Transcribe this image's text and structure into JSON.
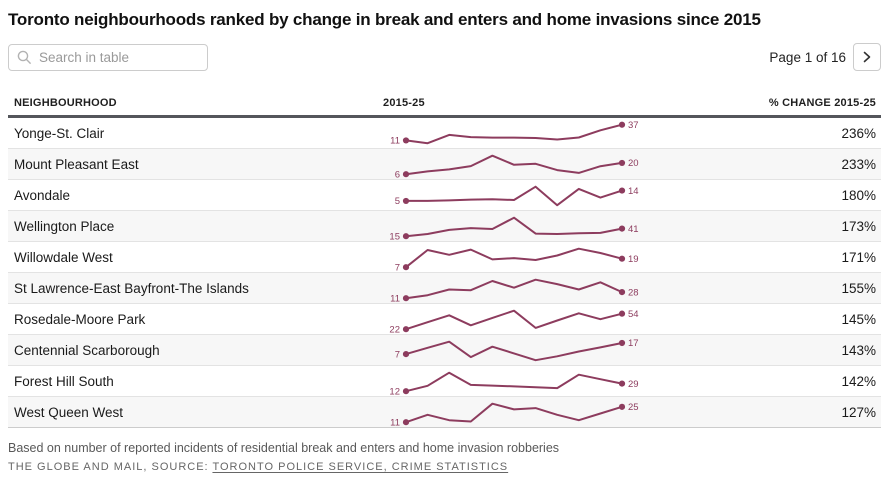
{
  "title": "Toronto neighbourhoods ranked by change in break and enters and home invasions since 2015",
  "toolbar": {
    "search_placeholder": "Search in table",
    "pagination_label": "Page 1 of 16"
  },
  "table": {
    "columns": [
      "NEIGHBOURHOOD",
      "2015-25",
      "% CHANGE 2015-25"
    ],
    "rows": [
      {
        "name": "Yonge-St. Clair",
        "start_value": "11",
        "end_value": "37",
        "pct_change": "236%",
        "spark": [
          0.15,
          0.0,
          0.45,
          0.33,
          0.3,
          0.3,
          0.28,
          0.2,
          0.31,
          0.7,
          1.0
        ]
      },
      {
        "name": "Mount Pleasant East",
        "start_value": "6",
        "end_value": "20",
        "pct_change": "233%",
        "spark": [
          0.0,
          0.15,
          0.26,
          0.44,
          1.0,
          0.51,
          0.56,
          0.22,
          0.07,
          0.43,
          0.61
        ]
      },
      {
        "name": "Avondale",
        "start_value": "5",
        "end_value": "14",
        "pct_change": "180%",
        "spark": [
          0.23,
          0.23,
          0.26,
          0.3,
          0.32,
          0.28,
          1.0,
          0.0,
          0.88,
          0.41,
          0.79
        ]
      },
      {
        "name": "Wellington Place",
        "start_value": "15",
        "end_value": "41",
        "pct_change": "173%",
        "spark": [
          0.0,
          0.12,
          0.34,
          0.44,
          0.39,
          1.0,
          0.14,
          0.12,
          0.16,
          0.18,
          0.41
        ]
      },
      {
        "name": "Willowdale West",
        "start_value": "7",
        "end_value": "19",
        "pct_change": "171%",
        "spark": [
          0.0,
          0.93,
          0.67,
          0.95,
          0.42,
          0.49,
          0.39,
          0.63,
          1.0,
          0.77,
          0.46
        ]
      },
      {
        "name": "St Lawrence-East Bayfront-The Islands",
        "start_value": "11",
        "end_value": "28",
        "pct_change": "155%",
        "spark": [
          0.0,
          0.16,
          0.47,
          0.43,
          0.93,
          0.57,
          1.0,
          0.76,
          0.47,
          0.86,
          0.33
        ]
      },
      {
        "name": "Rosedale-Moore Park",
        "start_value": "22",
        "end_value": "54",
        "pct_change": "145%",
        "spark": [
          0.0,
          0.38,
          0.75,
          0.21,
          0.61,
          1.0,
          0.07,
          0.47,
          0.86,
          0.54,
          0.84
        ]
      },
      {
        "name": "Centennial Scarborough",
        "start_value": "7",
        "end_value": "17",
        "pct_change": "143%",
        "spark": [
          0.33,
          0.67,
          1.0,
          0.17,
          0.73,
          0.37,
          0.0,
          0.21,
          0.47,
          0.69,
          0.93
        ]
      },
      {
        "name": "Forest Hill South",
        "start_value": "12",
        "end_value": "29",
        "pct_change": "142%",
        "spark": [
          0.0,
          0.29,
          1.0,
          0.34,
          0.3,
          0.26,
          0.21,
          0.17,
          0.89,
          0.65,
          0.41
        ]
      },
      {
        "name": "West Queen West",
        "start_value": "11",
        "end_value": "25",
        "pct_change": "127%",
        "spark": [
          0.0,
          0.4,
          0.11,
          0.04,
          1.0,
          0.69,
          0.76,
          0.4,
          0.11,
          0.47,
          0.83
        ]
      }
    ]
  },
  "footer": {
    "note": "Based on number of reported incidents of residential break and enters and home invasion robberies",
    "credit_prefix": "THE GLOBE AND MAIL, SOURCE: ",
    "source_link": "TORONTO POLICE SERVICE, CRIME STATISTICS"
  },
  "colors": {
    "accent": "#8d3c5e",
    "row_stripe": "#f7f7f7",
    "header_border": "#54565b"
  }
}
